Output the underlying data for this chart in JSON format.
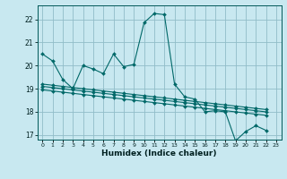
{
  "background_color": "#c8e8f0",
  "grid_color": "#90bcc8",
  "line_color": "#006868",
  "xlabel": "Humidex (Indice chaleur)",
  "xlim": [
    -0.5,
    23.5
  ],
  "ylim": [
    16.8,
    22.6
  ],
  "yticks": [
    17,
    18,
    19,
    20,
    21,
    22
  ],
  "xticks": [
    0,
    1,
    2,
    3,
    4,
    5,
    6,
    7,
    8,
    9,
    10,
    11,
    12,
    13,
    14,
    15,
    16,
    17,
    18,
    19,
    20,
    21,
    22,
    23
  ],
  "series": [
    [
      20.5,
      20.2,
      19.4,
      19.0,
      20.0,
      19.85,
      19.65,
      20.5,
      19.95,
      20.05,
      21.85,
      22.25,
      22.2,
      19.2,
      18.65,
      18.55,
      18.0,
      18.05,
      18.0,
      16.75,
      17.15,
      17.4,
      17.2
    ],
    [
      19.2,
      19.15,
      19.1,
      19.05,
      19.0,
      18.95,
      18.9,
      18.85,
      18.8,
      18.75,
      18.7,
      18.65,
      18.6,
      18.55,
      18.5,
      18.45,
      18.4,
      18.35,
      18.3,
      18.25,
      18.2,
      18.15,
      18.1
    ],
    [
      19.1,
      19.05,
      19.0,
      18.95,
      18.9,
      18.85,
      18.8,
      18.75,
      18.7,
      18.65,
      18.6,
      18.55,
      18.5,
      18.45,
      18.4,
      18.35,
      18.3,
      18.25,
      18.2,
      18.15,
      18.1,
      18.05,
      18.0
    ],
    [
      18.95,
      18.9,
      18.85,
      18.8,
      18.75,
      18.7,
      18.65,
      18.6,
      18.55,
      18.5,
      18.45,
      18.4,
      18.35,
      18.3,
      18.25,
      18.2,
      18.15,
      18.1,
      18.05,
      18.0,
      17.95,
      17.9,
      17.85
    ]
  ]
}
